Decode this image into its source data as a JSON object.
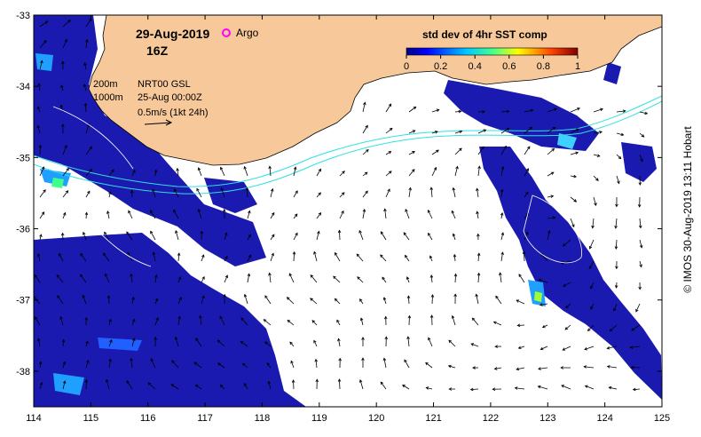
{
  "map": {
    "date": "29-Aug-2019",
    "hour": "16Z",
    "argo_label": "Argo",
    "contour_200": "200m",
    "contour_1000": "1000m",
    "altimetry_label": "NRT00 GSL",
    "altimetry_date": "25-Aug 00:00Z",
    "vector_scale_label": "0.5m/s (1kt 24h)",
    "credit": "© IMOS 30-Aug-2019 13:11 Hobart",
    "colors": {
      "land": "#f7c99a",
      "contour": "#33e0e0",
      "argo": "#ff00ff"
    }
  },
  "colorbar": {
    "title": "std dev of 4hr SST comp",
    "ticks": [
      "0",
      "0.2",
      "0.4",
      "0.6",
      "0.8",
      "1"
    ]
  },
  "axes": {
    "x_ticks": [
      "114",
      "115",
      "116",
      "117",
      "118",
      "119",
      "120",
      "121",
      "122",
      "123",
      "124",
      "125"
    ],
    "y_ticks": [
      "-33",
      "-34",
      "-35",
      "-36",
      "-37",
      "-38"
    ],
    "lon_range": [
      114,
      125
    ],
    "lat_range": [
      -38.5,
      -33
    ]
  }
}
